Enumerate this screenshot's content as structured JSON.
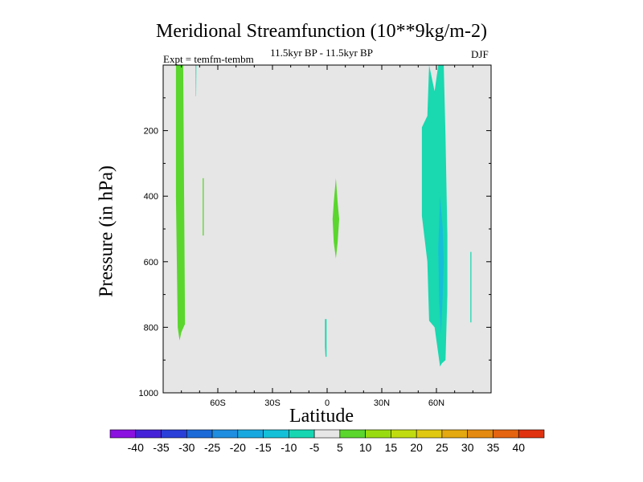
{
  "chart_data": {
    "type": "heatmap",
    "title": "Meridional Streamfunction (10**9kg/m-2)",
    "subtitle_left": "Expt = temfm-tembm",
    "subtitle_center": "11.5kyr BP - 11.5kyr BP",
    "subtitle_right": "DJF",
    "xlabel": "Latitude",
    "ylabel": "Pressure (in hPa)",
    "xlim": [
      -90,
      90
    ],
    "ylim": [
      1000,
      0
    ],
    "x_ticks": [
      {
        "value": -60,
        "label": "60S"
      },
      {
        "value": -30,
        "label": "30S"
      },
      {
        "value": 0,
        "label": "0"
      },
      {
        "value": 30,
        "label": "30N"
      },
      {
        "value": 60,
        "label": "60N"
      }
    ],
    "y_ticks": [
      {
        "value": 200,
        "label": "200"
      },
      {
        "value": 400,
        "label": "400"
      },
      {
        "value": 600,
        "label": "600"
      },
      {
        "value": 800,
        "label": "800"
      },
      {
        "value": 1000,
        "label": "1000"
      }
    ],
    "background_color": "#e6e6e6",
    "regions": [
      {
        "name": "sh-high-lat-positive",
        "color": "#5ad62d",
        "points": [
          [
            -83,
            0
          ],
          [
            -79,
            0
          ],
          [
            -78,
            790
          ],
          [
            -80,
            815
          ],
          [
            -81,
            840
          ],
          [
            -82,
            800
          ],
          [
            -83,
            400
          ]
        ]
      },
      {
        "name": "sh-thin-negative",
        "color": "#1ad8b0",
        "points": [
          [
            -72.2,
            0
          ],
          [
            -71.8,
            0
          ],
          [
            -71.9,
            95
          ],
          [
            -72.1,
            95
          ]
        ]
      },
      {
        "name": "sh-midlat-thin-positive",
        "color": "#5ad62d",
        "points": [
          [
            -68.3,
            345
          ],
          [
            -67.7,
            345
          ],
          [
            -67.7,
            520
          ],
          [
            -68.3,
            520
          ]
        ]
      },
      {
        "name": "equatorial-positive",
        "color": "#5ad62d",
        "points": [
          [
            4.8,
            345
          ],
          [
            5.8,
            420
          ],
          [
            6.6,
            470
          ],
          [
            5.8,
            540
          ],
          [
            4.8,
            590
          ],
          [
            3.6,
            540
          ],
          [
            3.0,
            470
          ],
          [
            3.6,
            420
          ]
        ]
      },
      {
        "name": "equatorial-lower-negative",
        "color": "#1ad8b0",
        "points": [
          [
            -1.2,
            775
          ],
          [
            -0.3,
            775
          ],
          [
            -0.3,
            890
          ],
          [
            -0.9,
            890
          ],
          [
            -1.2,
            860
          ]
        ]
      },
      {
        "name": "nh-midlat-negative",
        "color": "#1ad8b0",
        "points": [
          [
            56,
            0
          ],
          [
            59,
            80
          ],
          [
            61,
            0
          ],
          [
            64,
            0
          ],
          [
            65,
            220
          ],
          [
            66,
            520
          ],
          [
            66,
            700
          ],
          [
            65,
            900
          ],
          [
            63,
            910
          ],
          [
            62,
            920
          ],
          [
            59,
            800
          ],
          [
            56,
            780
          ],
          [
            55,
            600
          ],
          [
            52,
            460
          ],
          [
            52,
            190
          ],
          [
            55,
            155
          ]
        ]
      },
      {
        "name": "nh-core-blue",
        "color": "#16bfd8",
        "points": [
          [
            62,
            400
          ],
          [
            63.5,
            500
          ],
          [
            64,
            600
          ],
          [
            63.5,
            700
          ],
          [
            62.5,
            820
          ],
          [
            61.5,
            720
          ],
          [
            61,
            560
          ]
        ]
      },
      {
        "name": "nh-high-lat-thin-negative",
        "color": "#1ad8b0",
        "points": [
          [
            78.6,
            570
          ],
          [
            79.2,
            570
          ],
          [
            79.2,
            785
          ],
          [
            78.6,
            785
          ]
        ]
      }
    ],
    "colorbar": {
      "labels": [
        "-40",
        "-35",
        "-30",
        "-25",
        "-20",
        "-15",
        "-10",
        "-5",
        "5",
        "10",
        "15",
        "20",
        "25",
        "30",
        "35",
        "40"
      ],
      "colors": [
        "#8a11e0",
        "#4522d8",
        "#2a3ed8",
        "#1c6ad8",
        "#1f8ee0",
        "#18a8e0",
        "#14c0d8",
        "#16d6b2",
        "#e6e6e6",
        "#5ad62d",
        "#98dc10",
        "#c0dc10",
        "#e0c810",
        "#e4a810",
        "#e48a10",
        "#e46410",
        "#e03210"
      ]
    }
  }
}
